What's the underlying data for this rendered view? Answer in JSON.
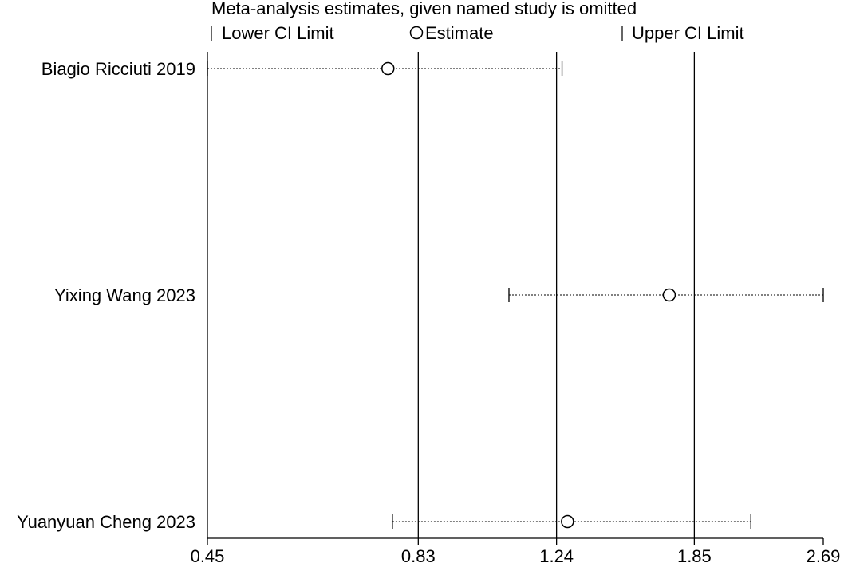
{
  "chart_data": {
    "type": "forest-sensitivity",
    "title": "Meta-analysis estimates, given named study is omitted",
    "legend": {
      "lower": "Lower CI Limit",
      "estimate": "Estimate",
      "upper": "Upper CI Limit"
    },
    "x_ticks": [
      "0.45",
      "0.83",
      "1.24",
      "1.85",
      "2.69"
    ],
    "x_tick_values": [
      0.45,
      0.83,
      1.24,
      1.85,
      2.69
    ],
    "x_scale": "log",
    "reference_lines": [
      0.83,
      1.24,
      1.85
    ],
    "studies": [
      {
        "name": "Biagio Ricciuti 2019",
        "lower": 0.45,
        "estimate": 0.76,
        "upper": 1.26
      },
      {
        "name": "Yixing Wang 2023",
        "lower": 1.08,
        "estimate": 1.72,
        "upper": 2.69
      },
      {
        "name": "Yuanyuan Cheng 2023",
        "lower": 0.77,
        "estimate": 1.28,
        "upper": 2.18
      }
    ]
  }
}
